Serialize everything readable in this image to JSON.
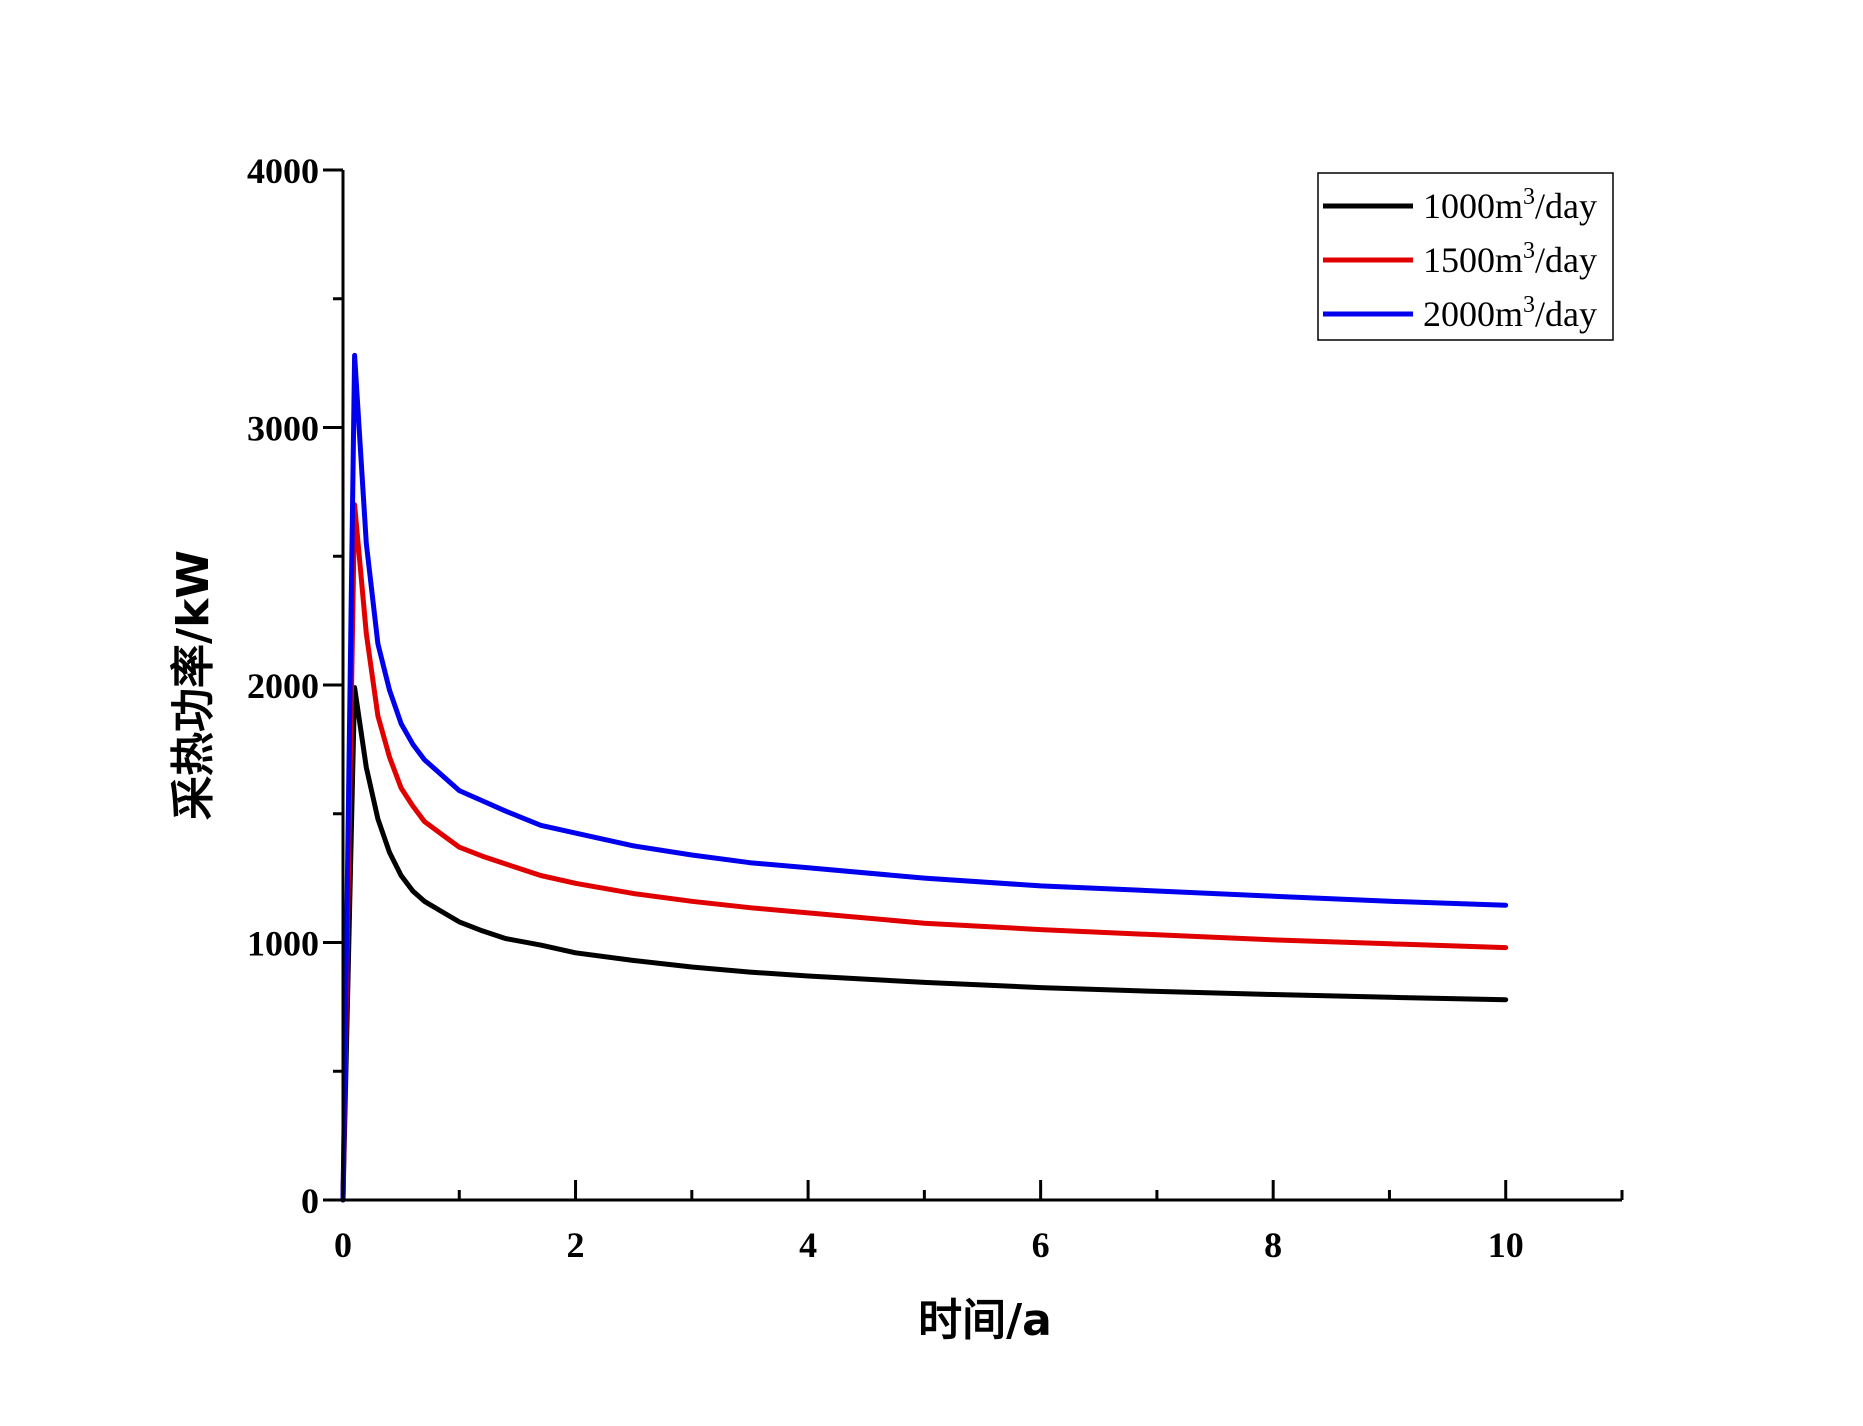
{
  "chart_data": {
    "type": "line",
    "title": "",
    "xlabel": "时间/a",
    "ylabel": "采热功率/kW",
    "xlim": [
      0,
      11
    ],
    "ylim": [
      0,
      4000
    ],
    "xticks": [
      0,
      2,
      4,
      6,
      8,
      10
    ],
    "yticks": [
      0,
      1000,
      2000,
      3000,
      4000
    ],
    "x_minor_step": 1,
    "y_minor_step": 500,
    "grid": false,
    "legend_position": "top-right",
    "series": [
      {
        "name": "1000m³/day",
        "label_base": "1000m",
        "label_sup": "3",
        "label_suffix": "/day",
        "color": "#000000",
        "x": [
          0,
          0.1,
          0.2,
          0.3,
          0.4,
          0.5,
          0.6,
          0.7,
          0.85,
          1.0,
          1.2,
          1.4,
          1.7,
          2.0,
          2.5,
          3.0,
          3.5,
          4.0,
          5.0,
          6.0,
          7.0,
          8.0,
          9.0,
          10.0
        ],
        "y": [
          0,
          1990,
          1680,
          1480,
          1350,
          1260,
          1200,
          1160,
          1120,
          1080,
          1045,
          1015,
          990,
          960,
          930,
          905,
          885,
          870,
          845,
          825,
          810,
          798,
          787,
          778
        ]
      },
      {
        "name": "1500m³/day",
        "label_base": "1500m",
        "label_sup": "3",
        "label_suffix": "/day",
        "color": "#e00000",
        "x": [
          0,
          0.1,
          0.2,
          0.3,
          0.4,
          0.5,
          0.6,
          0.7,
          0.85,
          1.0,
          1.2,
          1.4,
          1.7,
          2.0,
          2.5,
          3.0,
          3.5,
          4.0,
          5.0,
          6.0,
          7.0,
          8.0,
          9.0,
          10.0
        ],
        "y": [
          0,
          2700,
          2200,
          1880,
          1720,
          1600,
          1530,
          1470,
          1420,
          1370,
          1335,
          1305,
          1260,
          1230,
          1190,
          1160,
          1135,
          1115,
          1075,
          1050,
          1030,
          1010,
          995,
          980
        ]
      },
      {
        "name": "2000m³/day",
        "label_base": "2000m",
        "label_sup": "3",
        "label_suffix": "/day",
        "color": "#0000ee",
        "x": [
          0,
          0.1,
          0.2,
          0.3,
          0.4,
          0.5,
          0.6,
          0.7,
          0.85,
          1.0,
          1.2,
          1.4,
          1.7,
          2.0,
          2.5,
          3.0,
          3.5,
          4.0,
          5.0,
          6.0,
          7.0,
          8.0,
          9.0,
          10.0
        ],
        "y": [
          0,
          3280,
          2550,
          2160,
          1980,
          1850,
          1770,
          1710,
          1650,
          1590,
          1550,
          1510,
          1455,
          1425,
          1375,
          1340,
          1310,
          1290,
          1250,
          1220,
          1200,
          1180,
          1160,
          1145
        ]
      }
    ]
  }
}
